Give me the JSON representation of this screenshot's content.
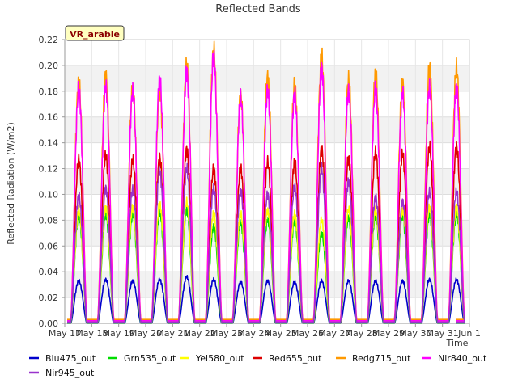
{
  "chart_data": {
    "type": "line",
    "title": "Reflected Bands",
    "xlabel": "Time",
    "ylabel": "Reflected Radiation (W/m2)",
    "station_label": "VR_arable",
    "xlim": [
      "2025-05-17",
      "2025-06-01"
    ],
    "ylim": [
      0,
      0.22
    ],
    "x_ticks": [
      "May 17",
      "May 18",
      "May 19",
      "May 20",
      "May 21",
      "May 22",
      "May 23",
      "May 24",
      "May 25",
      "May 26",
      "May 27",
      "May 28",
      "May 29",
      "May 30",
      "May 31",
      "Jun 1"
    ],
    "y_ticks": [
      "0.00",
      "0.02",
      "0.04",
      "0.06",
      "0.08",
      "0.10",
      "0.12",
      "0.14",
      "0.16",
      "0.18",
      "0.20",
      "0.22"
    ],
    "y_tick_values": [
      0,
      0.02,
      0.04,
      0.06,
      0.08,
      0.1,
      0.12,
      0.14,
      0.16,
      0.18,
      0.2,
      0.22
    ],
    "grid": true,
    "legend_position": "bottom",
    "days": [
      "May 17",
      "May 18",
      "May 19",
      "May 20",
      "May 21",
      "May 22",
      "May 23",
      "May 24",
      "May 25",
      "May 26",
      "May 27",
      "May 28",
      "May 29",
      "May 30",
      "May 31"
    ],
    "series": [
      {
        "name": "Blu475_out",
        "color": "#0000cc",
        "daily_peak": [
          0.033,
          0.034,
          0.033,
          0.034,
          0.036,
          0.034,
          0.032,
          0.033,
          0.032,
          0.033,
          0.033,
          0.033,
          0.033,
          0.034,
          0.034
        ],
        "night": 0.0
      },
      {
        "name": "Grn535_out",
        "color": "#00dd00",
        "daily_peak": [
          0.084,
          0.084,
          0.084,
          0.086,
          0.088,
          0.075,
          0.078,
          0.08,
          0.079,
          0.07,
          0.082,
          0.083,
          0.083,
          0.084,
          0.085
        ],
        "night": 0.0
      },
      {
        "name": "Yel580_out",
        "color": "#ffff00",
        "daily_peak": [
          0.088,
          0.09,
          0.09,
          0.092,
          0.094,
          0.085,
          0.085,
          0.088,
          0.085,
          0.08,
          0.088,
          0.088,
          0.088,
          0.09,
          0.09
        ],
        "night": 0.001
      },
      {
        "name": "Red655_out",
        "color": "#dd0000",
        "daily_peak": [
          0.127,
          0.13,
          0.127,
          0.128,
          0.135,
          0.12,
          0.12,
          0.125,
          0.125,
          0.135,
          0.128,
          0.133,
          0.131,
          0.137,
          0.137
        ],
        "night": 0.002
      },
      {
        "name": "Redg715_out",
        "color": "#ff9900",
        "daily_peak": [
          0.187,
          0.192,
          0.183,
          0.18,
          0.2,
          0.212,
          0.177,
          0.191,
          0.185,
          0.207,
          0.189,
          0.194,
          0.186,
          0.198,
          0.198
        ],
        "night": 0.003
      },
      {
        "name": "Nir840_out",
        "color": "#ff00ff",
        "daily_peak": [
          0.182,
          0.183,
          0.18,
          0.189,
          0.195,
          0.207,
          0.175,
          0.18,
          0.178,
          0.198,
          0.18,
          0.182,
          0.178,
          0.183,
          0.183
        ],
        "night": 0.002
      },
      {
        "name": "Nir945_out",
        "color": "#9933cc",
        "daily_peak": [
          0.099,
          0.105,
          0.104,
          0.118,
          0.12,
          0.105,
          0.103,
          0.1,
          0.106,
          0.12,
          0.11,
          0.098,
          0.095,
          0.102,
          0.102
        ],
        "night": 0.001
      }
    ]
  }
}
